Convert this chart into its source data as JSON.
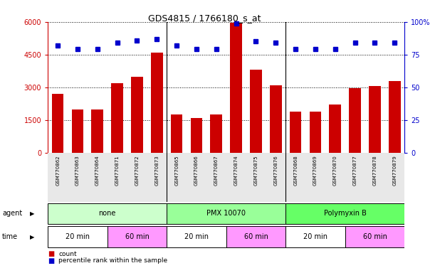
{
  "title": "GDS4815 / 1766180_s_at",
  "samples": [
    "GSM770862",
    "GSM770863",
    "GSM770864",
    "GSM770871",
    "GSM770872",
    "GSM770873",
    "GSM770865",
    "GSM770866",
    "GSM770867",
    "GSM770874",
    "GSM770875",
    "GSM770876",
    "GSM770868",
    "GSM770869",
    "GSM770870",
    "GSM770877",
    "GSM770878",
    "GSM770879"
  ],
  "counts": [
    2700,
    2000,
    2000,
    3200,
    3500,
    4600,
    1750,
    1600,
    1750,
    5950,
    3800,
    3100,
    1900,
    1900,
    2200,
    2950,
    3050,
    3300
  ],
  "percentiles": [
    82,
    79,
    79,
    84,
    86,
    87,
    82,
    79,
    79,
    99,
    85,
    84,
    79,
    79,
    79,
    84,
    84,
    84
  ],
  "bar_color": "#cc0000",
  "dot_color": "#0000cc",
  "ylim_left": [
    0,
    6000
  ],
  "ylim_right": [
    0,
    100
  ],
  "yticks_left": [
    0,
    1500,
    3000,
    4500,
    6000
  ],
  "yticks_right": [
    0,
    25,
    50,
    75,
    100
  ],
  "group_separators": [
    5.5,
    11.5
  ],
  "agents": [
    {
      "label": "none",
      "start": 0,
      "end": 6,
      "color": "#ccffcc"
    },
    {
      "label": "PMX 10070",
      "start": 6,
      "end": 12,
      "color": "#99ff99"
    },
    {
      "label": "Polymyxin B",
      "start": 12,
      "end": 18,
      "color": "#66ff66"
    }
  ],
  "times": [
    {
      "label": "20 min",
      "start": 0,
      "end": 3,
      "color": "#ffffff"
    },
    {
      "label": "60 min",
      "start": 3,
      "end": 6,
      "color": "#ff99ff"
    },
    {
      "label": "20 min",
      "start": 6,
      "end": 9,
      "color": "#ffffff"
    },
    {
      "label": "60 min",
      "start": 9,
      "end": 12,
      "color": "#ff99ff"
    },
    {
      "label": "20 min",
      "start": 12,
      "end": 15,
      "color": "#ffffff"
    },
    {
      "label": "60 min",
      "start": 15,
      "end": 18,
      "color": "#ff99ff"
    }
  ],
  "legend_count_color": "#cc0000",
  "legend_percentile_color": "#0000cc",
  "left_axis_color": "#cc0000",
  "right_axis_color": "#0000cc",
  "title_fontsize": 9,
  "tick_fontsize": 7,
  "sample_fontsize": 5,
  "label_fontsize": 7,
  "row_fontsize": 7
}
